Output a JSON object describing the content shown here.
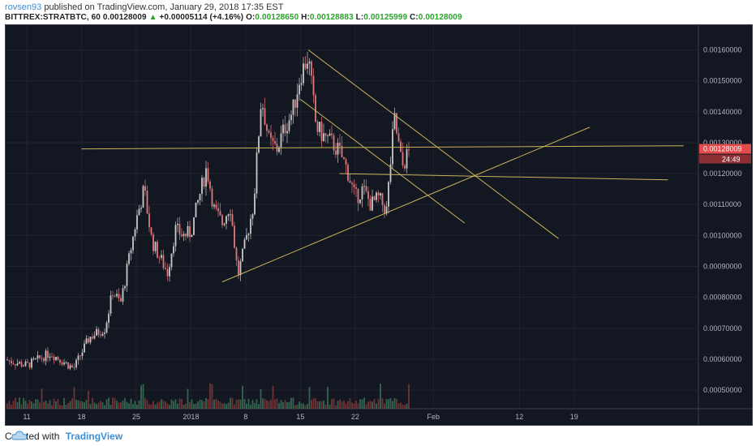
{
  "header": {
    "author": "rovsen93",
    "published_text": "published on TradingView.com, January 29, 2018 17:35 EST",
    "symbol": "BITTREX:STRATBTC, 60",
    "last": "0.00128009",
    "change": "+0.00005114 (+4.16%)",
    "open_label": "O:",
    "open": "0.00128650",
    "high_label": "H:",
    "high": "0.00128883",
    "low_label": "L:",
    "low": "0.00125999",
    "close_label": "C:",
    "close": "0.00128009"
  },
  "footer": {
    "created_with": "Created with",
    "brand": "TradingView"
  },
  "colors": {
    "background": "#131722",
    "up": "#c9c9c9",
    "down": "#e0787a",
    "trendline": "#c9b45a",
    "price_tag": "#e24c4c",
    "axis_text": "#b2b5be"
  },
  "chart_data": {
    "type": "candlestick",
    "symbol": "BITTREX:STRATBTC",
    "interval": "60",
    "y_axis": {
      "ticks": [
        "0.00050000",
        "0.00060000",
        "0.00070000",
        "0.00080000",
        "0.00090000",
        "0.00100000",
        "0.00110000",
        "0.00120000",
        "0.00130000",
        "0.00140000",
        "0.00150000",
        "0.00160000"
      ],
      "range": [
        0.00044,
        0.00168
      ]
    },
    "x_axis": {
      "ticks": [
        "11",
        "18",
        "25",
        "2018",
        "8",
        "15",
        "22",
        "Feb",
        "12",
        "19"
      ]
    },
    "last_price_tag": "0.00128009",
    "countdown_tag": "24:49",
    "price_path": [
      [
        "2017-12-08",
        0.0006
      ],
      [
        "2017-12-11",
        0.00058
      ],
      [
        "2017-12-14",
        0.00062
      ],
      [
        "2017-12-17",
        0.00057
      ],
      [
        "2017-12-19",
        0.00067
      ],
      [
        "2017-12-21",
        0.0007
      ],
      [
        "2017-12-22",
        0.00082
      ],
      [
        "2017-12-23",
        0.00078
      ],
      [
        "2017-12-25",
        0.00105
      ],
      [
        "2017-12-26",
        0.00115
      ],
      [
        "2017-12-27",
        0.00098
      ],
      [
        "2017-12-29",
        0.00088
      ],
      [
        "2017-12-30",
        0.00102
      ],
      [
        "2017-12-31",
        0.001
      ],
      [
        "2018-01-01",
        0.00101
      ],
      [
        "2018-01-02",
        0.00112
      ],
      [
        "2018-01-03",
        0.00122
      ],
      [
        "2018-01-04",
        0.00108
      ],
      [
        "2018-01-05",
        0.00104
      ],
      [
        "2018-01-06",
        0.0011
      ],
      [
        "2018-01-07",
        0.00087
      ],
      [
        "2018-01-08",
        0.00098
      ],
      [
        "2018-01-09",
        0.0011
      ],
      [
        "2018-01-10",
        0.00145
      ],
      [
        "2018-01-11",
        0.0013
      ],
      [
        "2018-01-12",
        0.00128
      ],
      [
        "2018-01-13",
        0.00135
      ],
      [
        "2018-01-14",
        0.0014
      ],
      [
        "2018-01-15",
        0.00152
      ],
      [
        "2018-01-16",
        0.00158
      ],
      [
        "2018-01-17",
        0.00135
      ],
      [
        "2018-01-18",
        0.00132
      ],
      [
        "2018-01-19",
        0.0013
      ],
      [
        "2018-01-20",
        0.00127
      ],
      [
        "2018-01-21",
        0.00121
      ],
      [
        "2018-01-22",
        0.00112
      ],
      [
        "2018-01-23",
        0.00115
      ],
      [
        "2018-01-24",
        0.0011
      ],
      [
        "2018-01-25",
        0.00112
      ],
      [
        "2018-01-26",
        0.00108
      ],
      [
        "2018-01-27",
        0.00138
      ],
      [
        "2018-01-28",
        0.00122
      ],
      [
        "2018-01-29",
        0.00128
      ]
    ],
    "trendlines": [
      {
        "from": [
          "2018-01-16",
          0.0016
        ],
        "to": [
          "2018-02-17",
          0.00099
        ]
      },
      {
        "from": [
          "2018-01-15",
          0.00144
        ],
        "to": [
          "2018-02-05",
          0.00104
        ]
      },
      {
        "from": [
          "2018-01-05",
          0.00085
        ],
        "to": [
          "2018-02-21",
          0.00135
        ]
      },
      {
        "from": [
          "2017-12-18",
          0.00128
        ],
        "to": [
          "2018-03-05",
          0.00129
        ]
      },
      {
        "from": [
          "2018-01-20",
          0.0012
        ],
        "to": [
          "2018-03-03",
          0.00118
        ]
      }
    ],
    "grid": true
  }
}
